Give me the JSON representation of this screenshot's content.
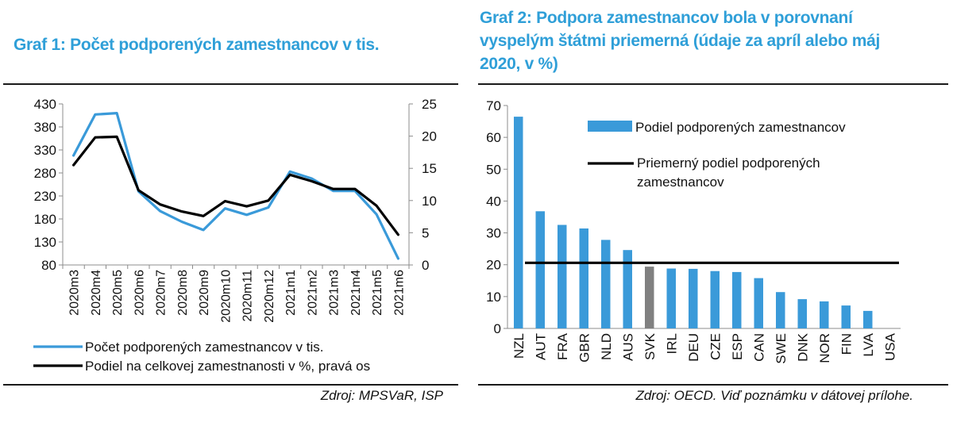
{
  "charts": [
    {
      "title": "Graf 1: Počet podporených zamestnancov v tis.",
      "source": "Zdroj: MPSVaR, ISP",
      "chart_data": {
        "type": "line",
        "categories": [
          "2020m3",
          "2020m4",
          "2020m5",
          "2020m6",
          "2020m7",
          "2020m8",
          "2020m9",
          "2020m10",
          "2020m11",
          "2020m12",
          "2021m1",
          "2021m2",
          "2021m3",
          "2021m4",
          "2021m5",
          "2021m6"
        ],
        "ylim": [
          80,
          430
        ],
        "yticks": [
          80,
          130,
          180,
          230,
          280,
          330,
          380,
          430
        ],
        "y2lim": [
          0,
          25
        ],
        "y2ticks": [
          0,
          5,
          10,
          15,
          20,
          25
        ],
        "series": [
          {
            "name": "Počet podporených zamestnancov v tis.",
            "axis": "left",
            "color": "#3a9ad9",
            "values": [
              318,
              407,
              410,
              240,
              197,
              174,
              156,
              203,
              189,
              205,
              283,
              268,
              241,
              241,
              190,
              94
            ]
          },
          {
            "name": "Podiel na celkovej zamestnanosti v %, pravá os",
            "axis": "right",
            "color": "#000000",
            "values": [
              15.5,
              19.8,
              19.9,
              11.6,
              9.4,
              8.3,
              7.6,
              9.9,
              9.1,
              10.0,
              14.0,
              13.0,
              11.8,
              11.8,
              9.2,
              4.7
            ]
          }
        ]
      }
    },
    {
      "title": "Graf 2: Podpora zamestnancov bola v porovnaní vyspelým štátmi priemerná (údaje za apríl alebo máj 2020, v %)",
      "source": "Zdroj: OECD. Viď poznámku v dátovej prílohe.",
      "chart_data": {
        "type": "bar",
        "categories": [
          "NZL",
          "AUT",
          "FRA",
          "GBR",
          "NLD",
          "AUS",
          "SVK",
          "IRL",
          "DEU",
          "CZE",
          "ESP",
          "CAN",
          "SWE",
          "DNK",
          "NOR",
          "FIN",
          "LVA",
          "USA"
        ],
        "ylim": [
          0,
          70
        ],
        "yticks": [
          0,
          10,
          20,
          30,
          40,
          50,
          60,
          70
        ],
        "series": [
          {
            "name": "Podiel podporených zamestnancov",
            "color": "#3a9ad9",
            "highlight_color": "#808080",
            "highlight": "SVK",
            "values": [
              66.5,
              36.8,
              32.5,
              31.4,
              27.8,
              24.6,
              19.4,
              18.8,
              18.7,
              18.0,
              17.7,
              15.8,
              11.4,
              9.2,
              8.5,
              7.2,
              5.5,
              0
            ]
          },
          {
            "name": "Priemerný podiel podporených zamestnancov",
            "color": "#000000",
            "value": 20.6
          }
        ]
      }
    }
  ]
}
